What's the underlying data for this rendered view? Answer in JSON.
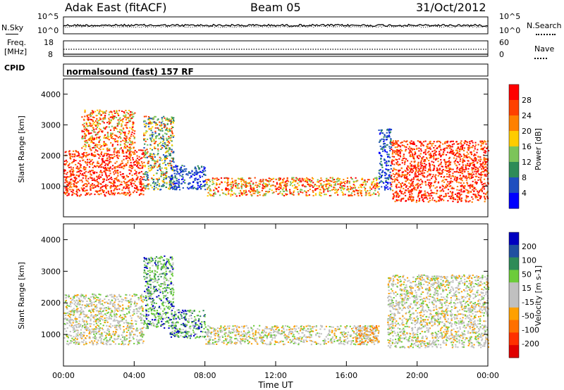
{
  "header": {
    "radar": "Adak East (fitACF)",
    "beam": "Beam 05",
    "date": "31/Oct/2012"
  },
  "noise_panel": {
    "left_label": "N.Sky",
    "right_label": "N.Search",
    "left_ticks": [
      "10^5",
      "10^0"
    ],
    "right_ticks": [
      "10^5",
      "10^0"
    ]
  },
  "freq_panel": {
    "left_label_1": "Freq.",
    "left_label_2": "[MHz]",
    "right_label": "Nave",
    "left_ticks": [
      "18",
      "8"
    ],
    "right_ticks": [
      "60",
      "0"
    ]
  },
  "cpid": {
    "label": "CPID",
    "text": "normalsound (fast) 157 RF"
  },
  "colors": {
    "power_scale": [
      "#0000ff",
      "#1f4fbf",
      "#2e8b57",
      "#7cc45a",
      "#ffcc00",
      "#ff8000",
      "#ff4000",
      "#ff0000"
    ],
    "velocity_scale": [
      "#0000c0",
      "#2050a0",
      "#2e8b57",
      "#6ccc3a",
      "#c0c0c0",
      "#c0c0c0",
      "#ffa000",
      "#ff7000",
      "#ff3000",
      "#e00000"
    ]
  },
  "chart_data": [
    {
      "type": "heatmap",
      "name": "power",
      "xlabel": "",
      "ylabel": "Slant Range [km]",
      "yticks": [
        "1000",
        "2000",
        "3000",
        "4000"
      ],
      "ylim": [
        0,
        4500
      ],
      "xlim_hours": [
        0,
        24
      ],
      "colorbar_label": "Power [dB]",
      "colorbar_ticks": [
        "4",
        "8",
        "12",
        "16",
        "20",
        "24",
        "28"
      ],
      "regions": [
        {
          "t0": 0.0,
          "t1": 4.5,
          "r0": 700,
          "r1": 2200,
          "level": "high"
        },
        {
          "t0": 1.0,
          "t1": 4.0,
          "r0": 2200,
          "r1": 3500,
          "level": "mid-high"
        },
        {
          "t0": 4.5,
          "t1": 6.2,
          "r0": 900,
          "r1": 3300,
          "level": "mid"
        },
        {
          "t0": 6.0,
          "t1": 8.0,
          "r0": 900,
          "r1": 1700,
          "level": "low"
        },
        {
          "t0": 8.0,
          "t1": 17.8,
          "r0": 700,
          "r1": 1300,
          "level": "mid-high"
        },
        {
          "t0": 17.8,
          "t1": 18.5,
          "r0": 900,
          "r1": 2900,
          "level": "low"
        },
        {
          "t0": 18.5,
          "t1": 24.0,
          "r0": 500,
          "r1": 2500,
          "level": "high"
        }
      ]
    },
    {
      "type": "heatmap",
      "name": "velocity",
      "xlabel": "Time UT",
      "ylabel": "Slant Range [km]",
      "yticks": [
        "1000",
        "2000",
        "3000",
        "4000"
      ],
      "ylim": [
        0,
        4500
      ],
      "xticks": [
        "00:00",
        "04:00",
        "08:00",
        "12:00",
        "16:00",
        "20:00",
        "00:00"
      ],
      "xlim_hours": [
        0,
        24
      ],
      "colorbar_label": "Velocity [m s-1]",
      "colorbar_ticks": [
        "200",
        "100",
        "50",
        "15",
        "-15",
        "-50",
        "-100",
        "-200"
      ],
      "regions": [
        {
          "t0": 0.0,
          "t1": 4.5,
          "r0": 700,
          "r1": 2300,
          "level": "near-zero"
        },
        {
          "t0": 4.5,
          "t1": 6.2,
          "r0": 1200,
          "r1": 3500,
          "level": "positive"
        },
        {
          "t0": 6.0,
          "t1": 8.0,
          "r0": 900,
          "r1": 1800,
          "level": "positive"
        },
        {
          "t0": 8.0,
          "t1": 17.8,
          "r0": 700,
          "r1": 1300,
          "level": "near-zero"
        },
        {
          "t0": 16.5,
          "t1": 17.8,
          "r0": 700,
          "r1": 1300,
          "level": "negative"
        },
        {
          "t0": 18.3,
          "t1": 24.0,
          "r0": 600,
          "r1": 2900,
          "level": "near-zero"
        }
      ]
    }
  ]
}
